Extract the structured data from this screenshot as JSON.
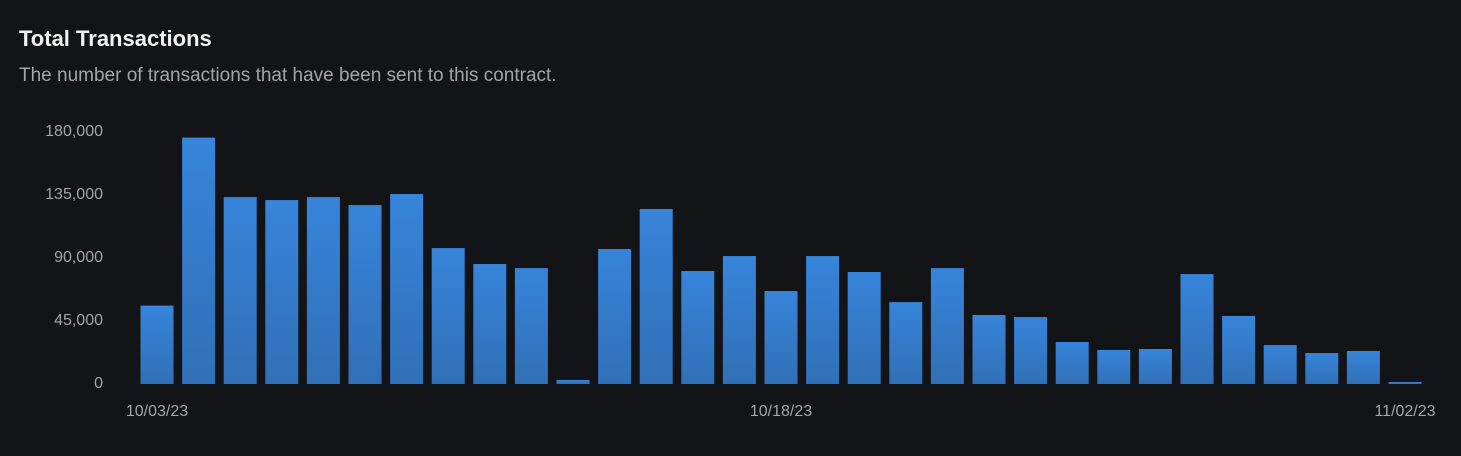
{
  "chart_data": {
    "type": "bar",
    "title": "Total Transactions",
    "subtitle": "The number of transactions that have been sent to this contract.",
    "categories": [
      "10/03/23",
      null,
      null,
      null,
      null,
      null,
      null,
      null,
      null,
      null,
      null,
      null,
      null,
      null,
      null,
      "10/18/23",
      null,
      null,
      null,
      null,
      null,
      null,
      null,
      null,
      null,
      null,
      null,
      null,
      null,
      null,
      "11/02/23"
    ],
    "values": [
      56000,
      176000,
      133500,
      131400,
      133500,
      127800,
      135700,
      97100,
      85700,
      82800,
      2900,
      96400,
      125000,
      80700,
      91400,
      66400,
      91400,
      80000,
      58500,
      82800,
      49300,
      47800,
      30000,
      24300,
      25000,
      78500,
      48600,
      27800,
      22100,
      23600,
      1400
    ],
    "color": "#3784da",
    "ylim": [
      0,
      180000
    ],
    "yticks": [
      {
        "value": 0,
        "label": "0"
      },
      {
        "value": 45000,
        "label": "45,000"
      },
      {
        "value": 90000,
        "label": "90,000"
      },
      {
        "value": 135000,
        "label": "135,000"
      },
      {
        "value": 180000,
        "label": "180,000"
      }
    ],
    "grid": false
  }
}
